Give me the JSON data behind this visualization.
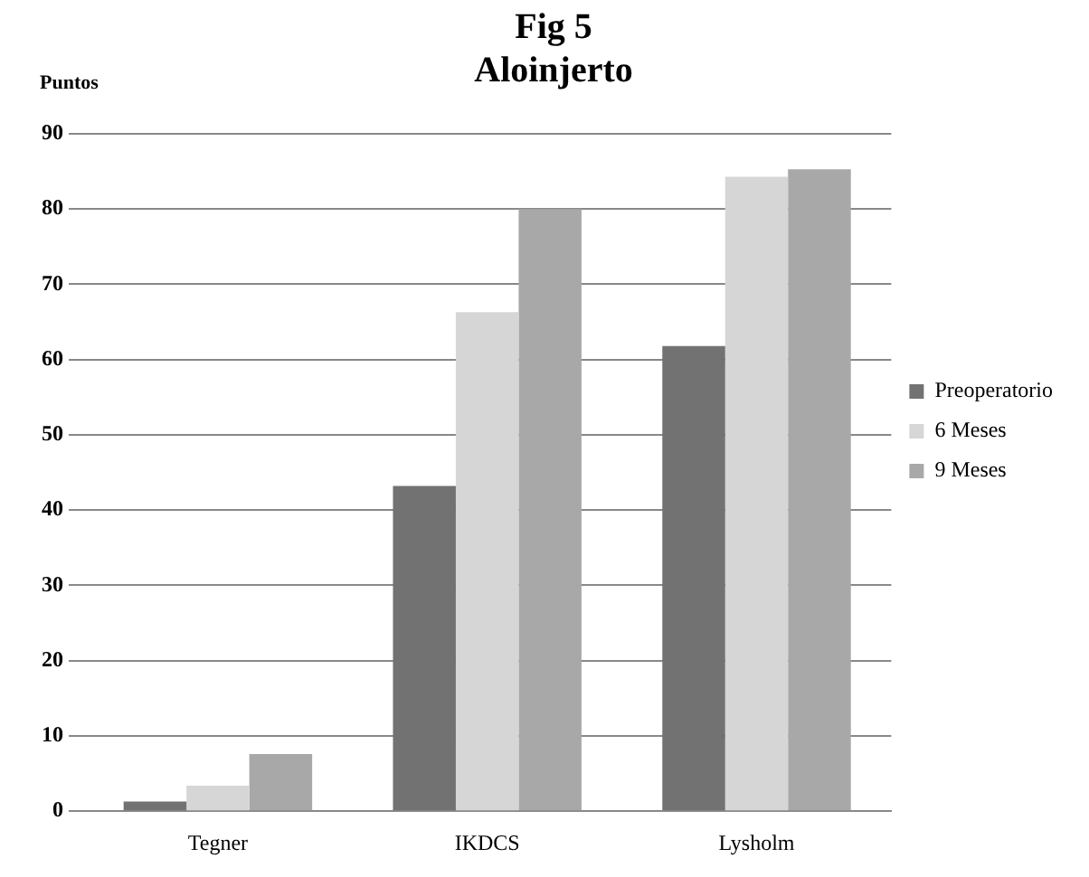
{
  "chart_data": {
    "type": "bar",
    "title": "Fig 5\nAloinjerto",
    "ylabel": "Puntos",
    "categories": [
      "Tegner",
      "IKDCS",
      "Lysholm"
    ],
    "series": [
      {
        "name": "Preoperatorio",
        "color": "#727272",
        "values": [
          1.3,
          43.2,
          61.8
        ]
      },
      {
        "name": "6 Meses",
        "color": "#d6d6d6",
        "values": [
          3.4,
          66.3,
          84.3
        ]
      },
      {
        "name": "9 Meses",
        "color": "#a8a8a8",
        "values": [
          7.6,
          80,
          85.3
        ]
      }
    ],
    "ylim": [
      0,
      90
    ],
    "yticks": [
      0,
      10,
      20,
      30,
      40,
      50,
      60,
      70,
      80,
      90
    ],
    "grid": "y",
    "legend": "right"
  }
}
